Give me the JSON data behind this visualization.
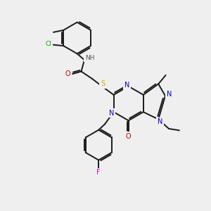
{
  "background_color": "#efefef",
  "bond_color": "#1a1a1a",
  "atom_colors": {
    "N": "#0000cc",
    "O": "#cc0000",
    "S": "#ccaa00",
    "Cl": "#00aa00",
    "F": "#cc00cc",
    "H": "#555555"
  },
  "figsize": [
    3.0,
    3.0
  ],
  "dpi": 100
}
